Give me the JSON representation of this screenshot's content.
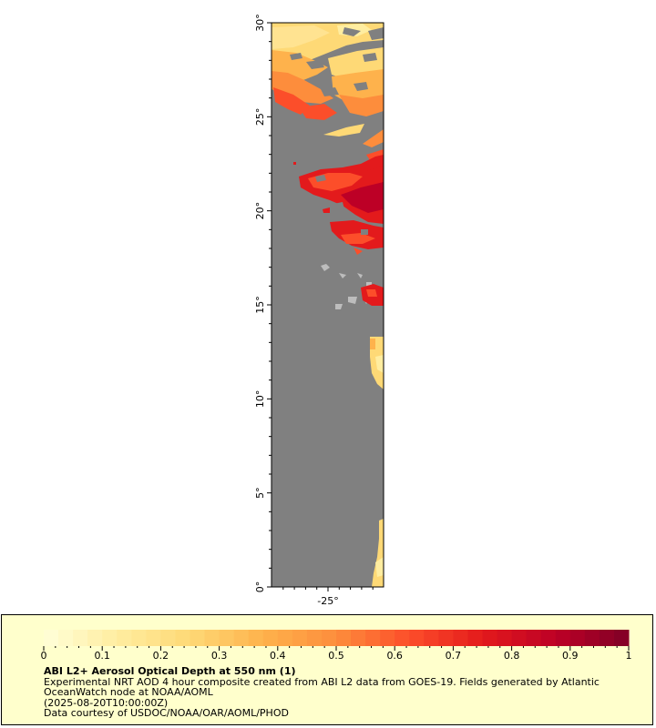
{
  "map": {
    "lat_ticks": [
      "0°",
      "5°",
      "10°",
      "15°",
      "20°",
      "25°",
      "30°"
    ],
    "lon_ticks": [
      "-25°"
    ],
    "ocean_color": "#808080",
    "ocean_name": "gray-no-data-region",
    "land_color": "#bdbdbd"
  },
  "colorbar": {
    "ticks": [
      "0",
      "0.1",
      "0.2",
      "0.3",
      "0.4",
      "0.5",
      "0.6",
      "0.7",
      "0.8",
      "0.9",
      "1"
    ],
    "range": [
      0,
      1
    ],
    "colors": [
      "#ffffd9",
      "#ffeda0",
      "#fed976",
      "#feb24c",
      "#fd8d3c",
      "#fc4e2a",
      "#e31a1c",
      "#bd0026",
      "#800026"
    ]
  },
  "legend": {
    "title": "ABI L2+ Aerosol Optical Depth at 550 nm (1)",
    "description": "Experimental NRT AOD 4 hour composite created from ABI L2 data from GOES-19. Fields generated by Atlantic OceanWatch node at NOAA/AOML",
    "time": "(2025-08-20T10:00:00Z)",
    "credit": "Data courtesy of USDOC/NOAA/OAR/AOML/PHOD"
  }
}
